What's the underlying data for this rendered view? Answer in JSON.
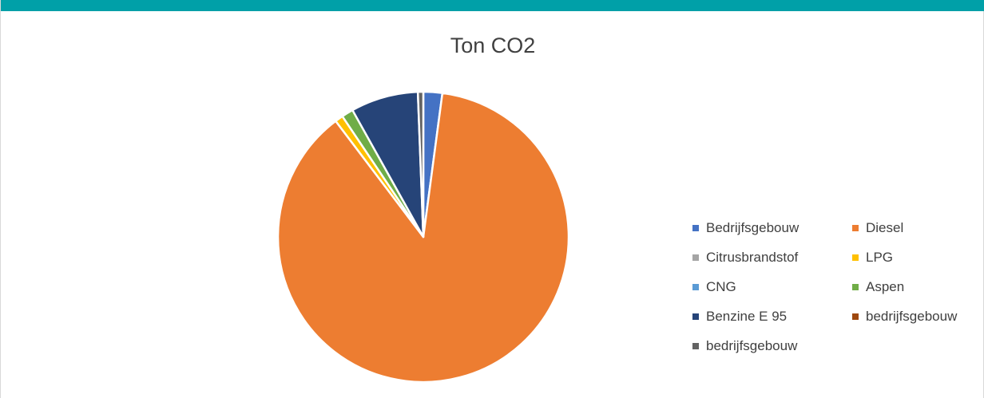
{
  "chart_data": {
    "type": "pie",
    "title": "Ton CO2",
    "legend_position": "right",
    "categories": [
      "Bedrijfsgebouw",
      "Diesel",
      "Citrusbrandstof",
      "LPG",
      "CNG",
      "Aspen",
      "Benzine E 95",
      "bedrijfsgebouw",
      "bedrijfsgebouw"
    ],
    "values": [
      2.1,
      87.6,
      0.0,
      0.9,
      0.0,
      1.3,
      7.5,
      0.0,
      0.6
    ],
    "colors": [
      "#4472c4",
      "#ed7d31",
      "#a5a5a5",
      "#ffc000",
      "#5b9bd5",
      "#70ad47",
      "#264478",
      "#9e480e",
      "#636363"
    ]
  },
  "theme": {
    "top_bar_color": "#00a0a8"
  }
}
